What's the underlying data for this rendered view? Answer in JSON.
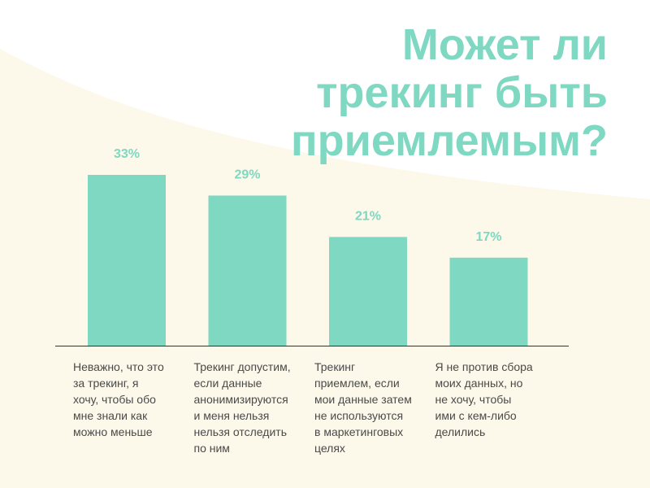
{
  "colors": {
    "bar": "#7fd8c2",
    "accent_text": "#7fd8c2",
    "background_wave": "#fcf8ea",
    "axis": "#333333",
    "caption_text": "#4a4a4a"
  },
  "chart_data": {
    "type": "bar",
    "title_lines": [
      "Может ли",
      "трекинг быть",
      "приемлемым?"
    ],
    "xlabel": "",
    "ylabel": "",
    "ylim": [
      0,
      33
    ],
    "grid": false,
    "value_suffix": "%",
    "categories": [
      [
        "Неважно, что это",
        "за трекинг, я",
        "хочу, чтобы обо",
        "мне знали как",
        "можно меньше"
      ],
      [
        "Трекинг допустим,",
        "если данные",
        "анонимизируются",
        "и меня нельзя",
        "нельзя отследить",
        "по ним"
      ],
      [
        "Трекинг",
        "приемлем, если",
        "мои данные затем",
        "не используются",
        "в маркетинговых",
        "целях"
      ],
      [
        "Я не против сбора",
        "моих данных, но",
        "не хочу, чтобы",
        "ими с кем-либо",
        "делились"
      ]
    ],
    "values": [
      33,
      29,
      21,
      17
    ],
    "value_labels": [
      "33%",
      "29%",
      "21%",
      "17%"
    ]
  }
}
